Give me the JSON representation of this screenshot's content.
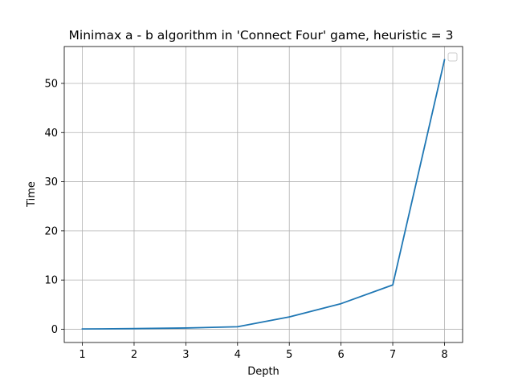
{
  "chart_data": {
    "type": "line",
    "title": "Minimax a - b algorithm in 'Connect Four' game, heuristic = 3",
    "xlabel": "Depth",
    "ylabel": "Time",
    "x": [
      1,
      2,
      3,
      4,
      5,
      6,
      7,
      8
    ],
    "series": [
      {
        "values": [
          0.05,
          0.12,
          0.25,
          0.5,
          2.5,
          5.2,
          9.0,
          54.8
        ],
        "color": "#1f77b4"
      }
    ],
    "xlim": [
      0.65,
      8.35
    ],
    "ylim": [
      -2.7,
      57.5
    ],
    "xticks": [
      1,
      2,
      3,
      4,
      5,
      6,
      7,
      8
    ],
    "xtick_labels": [
      "1",
      "2",
      "3",
      "4",
      "5",
      "6",
      "7",
      "8"
    ],
    "yticks": [
      0,
      10,
      20,
      30,
      40,
      50
    ],
    "ytick_labels": [
      "0",
      "10",
      "20",
      "30",
      "40",
      "50"
    ],
    "grid": true,
    "legend": "top-right"
  }
}
